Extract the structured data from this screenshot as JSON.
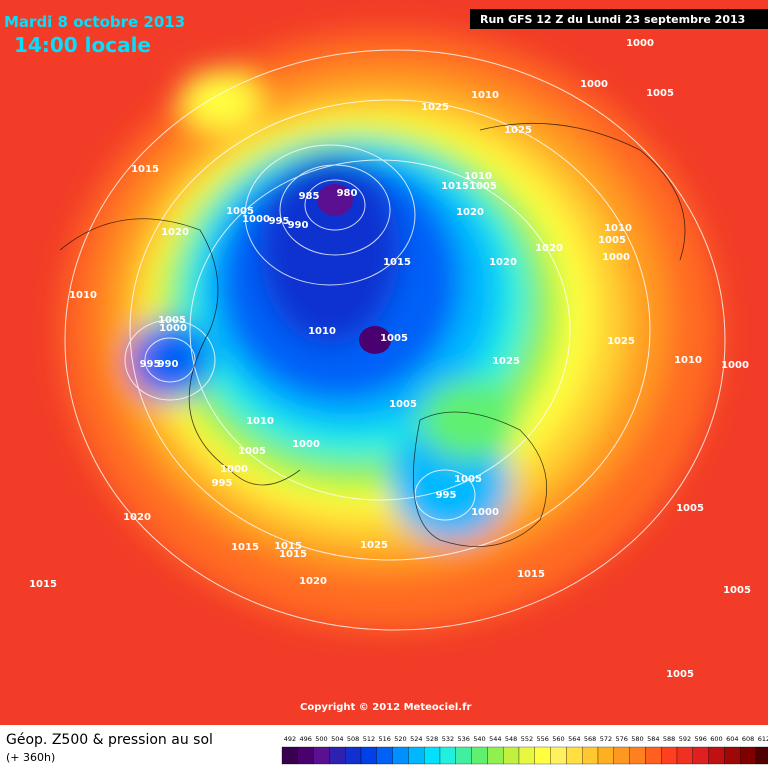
{
  "header": {
    "title": "Mardi 8 octobre 2013",
    "subtitle": "14:00 locale",
    "run": "Run GFS 12 Z du Lundi 23 septembre 2013"
  },
  "isobar_labels": [
    "1000",
    "1010",
    "1000",
    "1005",
    "1025",
    "1025",
    "1015",
    "1010",
    "1015",
    "1005",
    "980",
    "985",
    "1020",
    "1005",
    "1000",
    "995",
    "990",
    "1020",
    "1010",
    "1005",
    "1020",
    "1000",
    "1015",
    "1020",
    "1010",
    "1005",
    "1000",
    "1010",
    "1005",
    "1025",
    "1010",
    "1000",
    "995",
    "990",
    "1025",
    "1005",
    "1010",
    "1000",
    "1005",
    "1000",
    "1005",
    "995",
    "995",
    "1000",
    "1005",
    "1020",
    "1015",
    "1015",
    "1015",
    "1025",
    "1015",
    "1020",
    "1015",
    "1005",
    "1005"
  ],
  "copyright": "Copyright © 2012 Meteociel.fr",
  "footer": {
    "title": "Géop. Z500 & pression au sol",
    "lead": "(+ 360h)"
  },
  "colorbar": {
    "labels": [
      492,
      496,
      500,
      504,
      508,
      512,
      516,
      520,
      524,
      528,
      532,
      536,
      540,
      544,
      548,
      552,
      556,
      560,
      564,
      568,
      572,
      576,
      580,
      584,
      588,
      592,
      596,
      600,
      604,
      608,
      612
    ],
    "colors": [
      "#3a0050",
      "#4b0070",
      "#5a1090",
      "#3020b0",
      "#1030d0",
      "#0040e8",
      "#0060f8",
      "#0090ff",
      "#00b8ff",
      "#00e0ff",
      "#20f0e0",
      "#40f0a0",
      "#60f070",
      "#90f050",
      "#c0f040",
      "#e8f840",
      "#ffff40",
      "#fff060",
      "#ffe040",
      "#ffc830",
      "#ffb020",
      "#ff9820",
      "#ff8020",
      "#ff6020",
      "#ff4020",
      "#f03020",
      "#e02020",
      "#c01010",
      "#a00808",
      "#800000",
      "#500000"
    ]
  }
}
